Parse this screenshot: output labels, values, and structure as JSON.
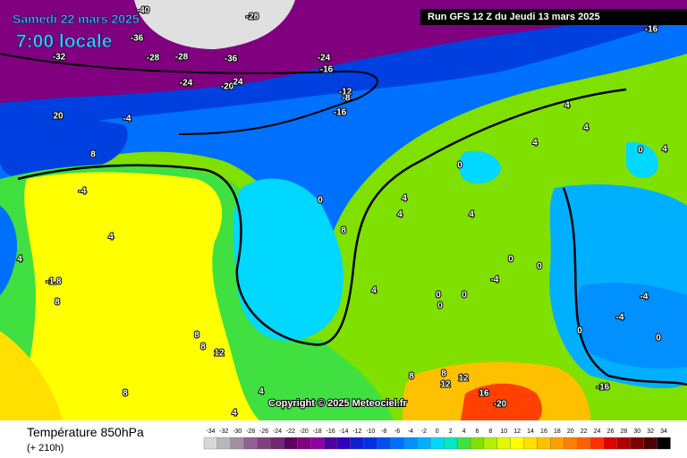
{
  "header": {
    "date": "Samedi 22 mars 2025",
    "time": "7:00 locale",
    "run": "Run GFS 12 Z du Jeudi 13 mars 2025",
    "copyright": "Copyright © 2025 Meteociel.fr"
  },
  "footer": {
    "title": "Température 850hPa",
    "lead": "(+ 210h)"
  },
  "legend": {
    "ticks": [
      -34,
      -32,
      -30,
      -28,
      -26,
      -24,
      -22,
      -20,
      -18,
      -16,
      -14,
      -12,
      -10,
      -8,
      -6,
      -4,
      -2,
      0,
      2,
      4,
      6,
      8,
      10,
      12,
      14,
      16,
      18,
      20,
      22,
      24,
      26,
      28,
      30,
      32,
      34
    ],
    "colors": [
      "#d8d8d8",
      "#b8b8b8",
      "#a090a0",
      "#906090",
      "#804080",
      "#702870",
      "#600060",
      "#800080",
      "#9000a0",
      "#5000a0",
      "#3000c0",
      "#1020d0",
      "#0030e0",
      "#0050f0",
      "#0070ff",
      "#0090ff",
      "#00b0ff",
      "#00d8ff",
      "#00e8c0",
      "#40e040",
      "#80e000",
      "#b0f000",
      "#e0f800",
      "#ffff00",
      "#ffe000",
      "#ffc000",
      "#ffa000",
      "#ff8000",
      "#ff6000",
      "#ff3000",
      "#e00000",
      "#b00000",
      "#800000",
      "#500000",
      "#000000"
    ]
  },
  "contour_labels": [
    "-40",
    "-28",
    "-36",
    "-32",
    "-28",
    "-24",
    "-36",
    "-28",
    "-20",
    "24",
    "-24",
    "-16",
    "-12",
    "-8",
    "-16",
    "20",
    "-4",
    "8",
    "-4",
    "0",
    "8",
    "4",
    "-1.8",
    "4",
    "8",
    "8",
    "8",
    "12",
    "8",
    "4",
    "4",
    "0",
    "0",
    "4",
    "4",
    "4",
    "4",
    "4",
    "4",
    "4",
    "0",
    "0",
    "4",
    "0",
    "0",
    "0",
    "-4",
    "-4",
    "-4",
    "0",
    "0",
    "8",
    "12",
    "12",
    "16",
    "-20",
    "8",
    "-16",
    "-16"
  ]
}
